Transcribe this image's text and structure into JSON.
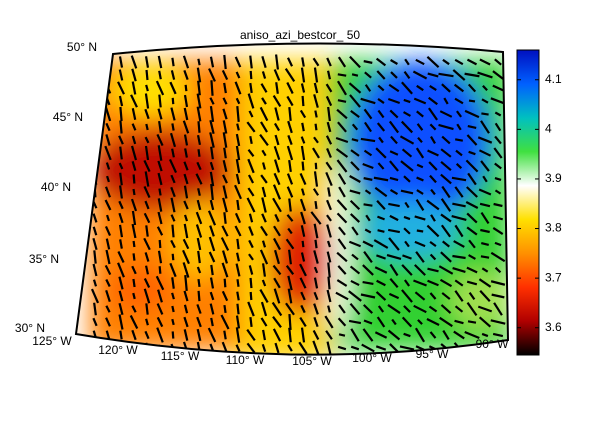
{
  "title": "aniso_azi_bestcor_ 50",
  "lat_labels": [
    "50° N",
    "45° N",
    "40° N",
    "35° N",
    "30° N"
  ],
  "lon_labels": [
    "125° W",
    "120° W",
    "115° W",
    "110° W",
    "105° W",
    "100° W",
    "95° W",
    "90° W"
  ],
  "colorbar": {
    "clim": [
      3.545,
      4.16
    ],
    "ticks": [
      3.6,
      3.7,
      3.8,
      3.9,
      4,
      4.1
    ],
    "colormap": [
      "#000000",
      "#b00000",
      "#ff3000",
      "#ff9000",
      "#ffe000",
      "#ffffff",
      "#40e040",
      "#00c0c0",
      "#0060ff",
      "#0010c0"
    ]
  }
}
